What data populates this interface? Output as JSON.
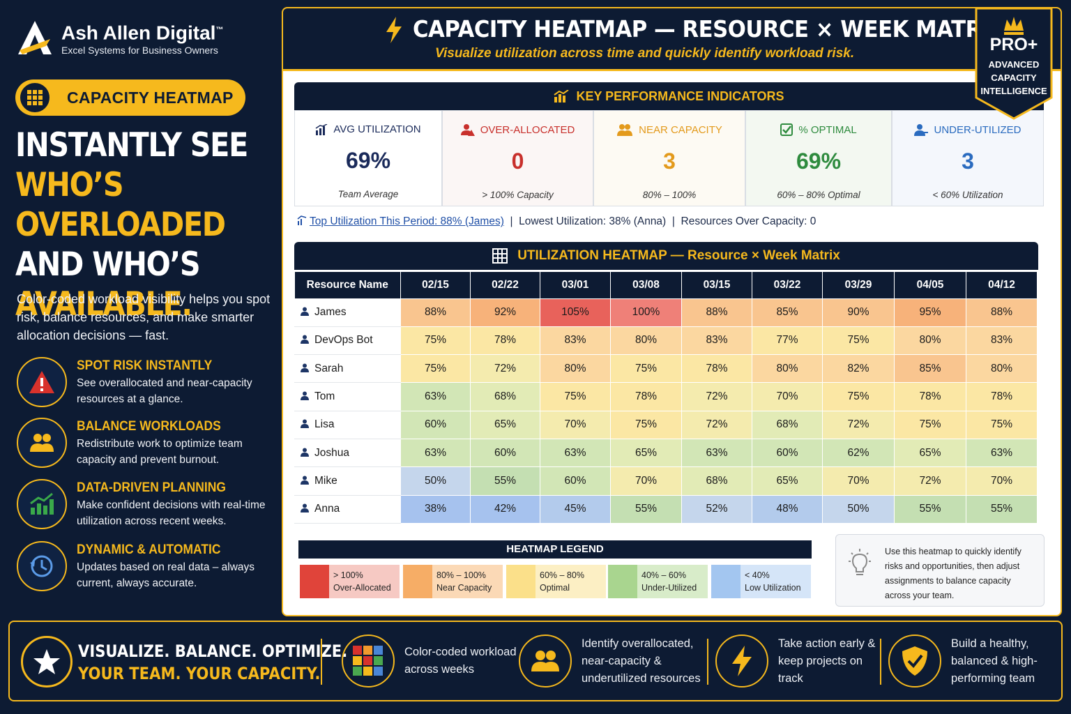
{
  "brand": {
    "name": "Ash Allen Digital",
    "tm": "™",
    "tagline": "Excel Systems for Business Owners"
  },
  "sidebar": {
    "pill_label": "CAPACITY HEATMAP",
    "headline": {
      "line1": "INSTANTLY SEE",
      "line2": "WHO’S OVERLOADED",
      "line3": "AND WHO’S",
      "line4": "AVAILABLE."
    },
    "intro": "Color-coded workload visibility helps you spot risk, balance resources, and make smarter allocation decisions — fast.",
    "features": [
      {
        "title": "SPOT RISK INSTANTLY",
        "desc": "See overallocated and near-capacity resources at a glance.",
        "icon": "warning-icon"
      },
      {
        "title": "BALANCE WORKLOADS",
        "desc": "Redistribute work to optimize team capacity and prevent burnout.",
        "icon": "team-icon"
      },
      {
        "title": "DATA-DRIVEN PLANNING",
        "desc": "Make confident decisions with real-time utilization across recent weeks.",
        "icon": "growth-chart-icon"
      },
      {
        "title": "DYNAMIC & AUTOMATIC",
        "desc": "Updates based on real data – always current, always accurate.",
        "icon": "clock-refresh-icon"
      }
    ]
  },
  "header": {
    "title": "CAPACITY HEATMAP — RESOURCE × WEEK MATRIX",
    "subtitle": "Visualize utilization across time and quickly identify workload risk."
  },
  "pro_badge": {
    "title": "PRO+",
    "line1": "ADVANCED",
    "line2": "CAPACITY",
    "line3": "INTELLIGENCE"
  },
  "kpi": {
    "title": "KEY PERFORMANCE INDICATORS",
    "cards": [
      {
        "label": "AVG UTILIZATION",
        "value": "69%",
        "sub": "Team Average",
        "color": "#1a2a5a",
        "bg": "#ffffff"
      },
      {
        "label": "OVER-ALLOCATED",
        "value": "0",
        "sub": "> 100% Capacity",
        "color": "#c8302c",
        "bg": "#fbf6f5"
      },
      {
        "label": "NEAR CAPACITY",
        "value": "3",
        "sub": "80% – 100%",
        "color": "#e39a1c",
        "bg": "#fdfaf3"
      },
      {
        "label": "% OPTIMAL",
        "value": "69%",
        "sub": "60% – 80% Optimal",
        "color": "#2e8b3e",
        "bg": "#f3f8f1"
      },
      {
        "label": "UNDER-UTILIZED",
        "value": "3",
        "sub": "< 60% Utilization",
        "color": "#2a6bbf",
        "bg": "#f4f7fc"
      }
    ]
  },
  "stats": {
    "top": "Top Utilization This Period: 88% (James)",
    "sep1": "|",
    "lowest": "Lowest Utilization: 38% (Anna)",
    "sep2": "|",
    "over": "Resources Over Capacity: 0"
  },
  "heatmap": {
    "title": "UTILIZATION HEATMAP — Resource × Week Matrix",
    "resource_header": "Resource Name",
    "weeks": [
      "02/15",
      "02/22",
      "03/01",
      "03/08",
      "03/15",
      "03/22",
      "03/29",
      "04/05",
      "04/12"
    ],
    "rows": [
      {
        "name": "James",
        "values": [
          88,
          92,
          105,
          100,
          88,
          85,
          90,
          95,
          88
        ]
      },
      {
        "name": "DevOps Bot",
        "values": [
          75,
          78,
          83,
          80,
          83,
          77,
          75,
          80,
          83
        ]
      },
      {
        "name": "Sarah",
        "values": [
          75,
          72,
          80,
          75,
          78,
          80,
          82,
          85,
          80
        ]
      },
      {
        "name": "Tom",
        "values": [
          63,
          68,
          75,
          78,
          72,
          70,
          75,
          78,
          78
        ]
      },
      {
        "name": "Lisa",
        "values": [
          60,
          65,
          70,
          75,
          72,
          68,
          72,
          75,
          75
        ]
      },
      {
        "name": "Joshua",
        "values": [
          63,
          60,
          63,
          65,
          63,
          60,
          62,
          65,
          63
        ]
      },
      {
        "name": "Mike",
        "values": [
          50,
          55,
          60,
          70,
          68,
          65,
          70,
          72,
          70
        ]
      },
      {
        "name": "Anna",
        "values": [
          38,
          42,
          45,
          55,
          52,
          48,
          50,
          55,
          55
        ]
      }
    ]
  },
  "legend": {
    "title": "HEATMAP LEGEND",
    "items": [
      {
        "range": "> 100%",
        "label": "Over-Allocated",
        "swatch": "#e0443a",
        "bg": "#f6c9c3"
      },
      {
        "range": "80% – 100%",
        "label": "Near Capacity",
        "swatch": "#f6ad66",
        "bg": "#fbd9b6"
      },
      {
        "range": "60% – 80%",
        "label": "Optimal",
        "swatch": "#fbe08a",
        "bg": "#fcefc4"
      },
      {
        "range": "40% – 60%",
        "label": "Under-Utilized",
        "swatch": "#a9d58f",
        "bg": "#d8ecc9"
      },
      {
        "range": "< 40%",
        "label": "Low Utilization",
        "swatch": "#a3c6f0",
        "bg": "#d5e5f8"
      }
    ]
  },
  "tip": "Use this heatmap to quickly identify risks and opportunities, then adjust assignments to balance capacity across your team.",
  "footer": {
    "line1": "VISUALIZE. BALANCE. OPTIMIZE.",
    "line2": "YOUR TEAM. YOUR CAPACITY.",
    "items": [
      {
        "text": "Color-coded workload across weeks",
        "icon": "color-grid-icon"
      },
      {
        "text": "Identify overallocated, near-capacity & underutilized resources",
        "icon": "team-icon"
      },
      {
        "text": "Take action early & keep projects on track",
        "icon": "lightning-icon"
      },
      {
        "text": "Build a healthy, balanced & high-performing team",
        "icon": "shield-check-icon"
      }
    ]
  }
}
